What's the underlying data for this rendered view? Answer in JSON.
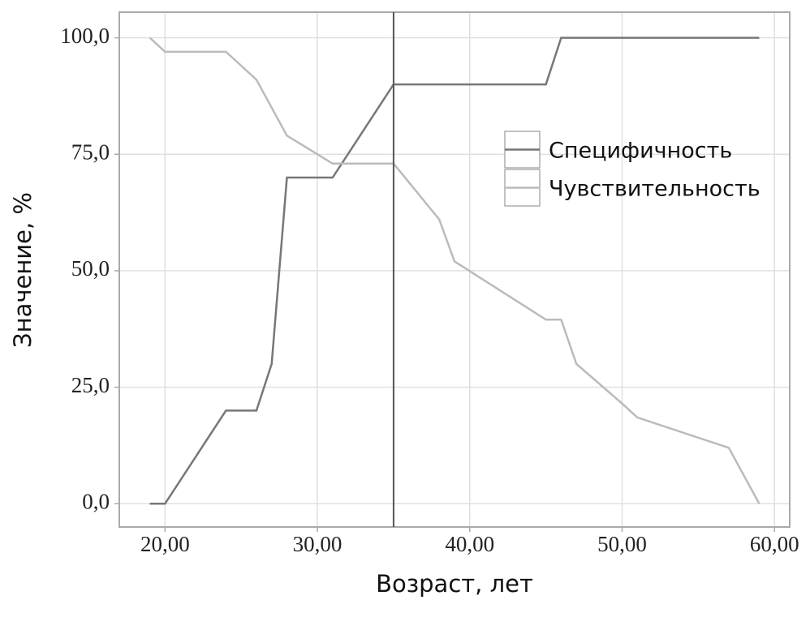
{
  "chart_data": {
    "type": "line",
    "x_label": "Возраст, лет",
    "y_label": "Значение, %",
    "series": [
      {
        "name": "Специфичность",
        "color": "#777777",
        "x": [
          19,
          20,
          24,
          26,
          27,
          28,
          31,
          35,
          45,
          46,
          59
        ],
        "values": [
          0,
          0,
          20,
          20,
          30,
          70,
          70,
          90,
          90,
          100,
          100
        ]
      },
      {
        "name": "Чувствительность",
        "color": "#bbbbbb",
        "x": [
          19,
          20,
          24,
          26,
          28,
          31,
          35,
          38,
          39,
          45,
          46,
          47,
          50,
          51,
          57,
          59
        ],
        "values": [
          100,
          97,
          97,
          91,
          79,
          73,
          73,
          61,
          52,
          39.5,
          39.5,
          30,
          21.5,
          18.5,
          12,
          0
        ]
      }
    ],
    "vline": 35,
    "vline_color": "#555555",
    "xlim": [
      17,
      61
    ],
    "ylim": [
      -5,
      105.5
    ],
    "xticks": [
      {
        "value": 20,
        "label": "20,00"
      },
      {
        "value": 30,
        "label": "30,00"
      },
      {
        "value": 40,
        "label": "40,00"
      },
      {
        "value": 50,
        "label": "50,00"
      },
      {
        "value": 60,
        "label": "60,00"
      }
    ],
    "yticks": [
      {
        "value": 0,
        "label": "0,0"
      },
      {
        "value": 25,
        "label": "25,0"
      },
      {
        "value": 50,
        "label": "50,0"
      },
      {
        "value": 75,
        "label": "75,0"
      },
      {
        "value": 100,
        "label": "100,0"
      }
    ],
    "grid": true,
    "legend_position": "right"
  }
}
